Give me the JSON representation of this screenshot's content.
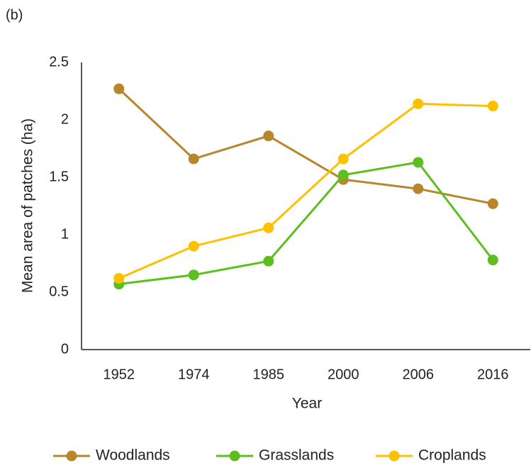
{
  "chart_data": {
    "type": "line",
    "title": "(b)",
    "x_label": "Year",
    "y_label": "Mean area of patches (ha)",
    "categories": [
      "1952",
      "1974",
      "1985",
      "2000",
      "2006",
      "2016"
    ],
    "series": [
      {
        "name": "Woodlands",
        "color": "#b8862b",
        "values": [
          2.27,
          1.66,
          1.86,
          1.48,
          1.4,
          1.27
        ]
      },
      {
        "name": "Grasslands",
        "color": "#5cbf1f",
        "values": [
          0.57,
          0.65,
          0.77,
          1.52,
          1.63,
          0.78
        ]
      },
      {
        "name": "Croplands",
        "color": "#ffc000",
        "values": [
          0.62,
          0.9,
          1.06,
          1.66,
          2.14,
          2.12
        ]
      }
    ],
    "ylim": [
      0,
      2.5
    ],
    "yticks": [
      0,
      0.5,
      1,
      1.5,
      2,
      2.5
    ],
    "grid": false,
    "legend": "bottom"
  }
}
